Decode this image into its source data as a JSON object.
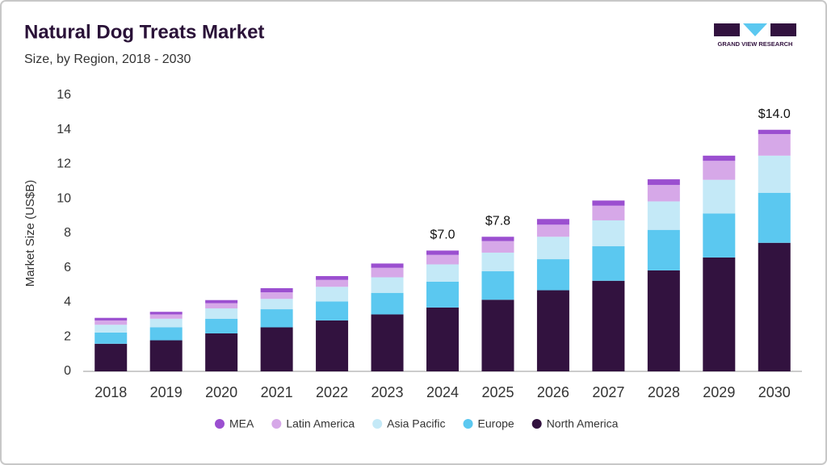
{
  "chart_data": {
    "type": "stacked_bar",
    "title": "Natural Dog Treats Market",
    "subtitle": "Size, by Region, 2018 - 2030",
    "logo_text": "GRAND VIEW RESEARCH",
    "y_label": "Market Size (US$B)",
    "categories": [
      "2018",
      "2019",
      "2020",
      "2021",
      "2022",
      "2023",
      "2024",
      "2025",
      "2026",
      "2027",
      "2028",
      "2029",
      "2030"
    ],
    "series": [
      {
        "name": "North America",
        "color": "#32123f",
        "values": [
          1.6,
          1.8,
          2.2,
          2.55,
          2.95,
          3.3,
          3.7,
          4.15,
          4.7,
          5.25,
          5.85,
          6.6,
          7.45
        ]
      },
      {
        "name": "Europe",
        "color": "#5bc8f0",
        "values": [
          0.65,
          0.75,
          0.85,
          1.05,
          1.1,
          1.25,
          1.5,
          1.65,
          1.8,
          2.0,
          2.35,
          2.55,
          2.9
        ]
      },
      {
        "name": "Asia Pacific",
        "color": "#c4e9f7",
        "values": [
          0.45,
          0.5,
          0.6,
          0.6,
          0.85,
          0.9,
          1.0,
          1.08,
          1.3,
          1.5,
          1.65,
          1.95,
          2.15
        ]
      },
      {
        "name": "Latin America",
        "color": "#d6a8e8",
        "values": [
          0.25,
          0.25,
          0.3,
          0.38,
          0.4,
          0.55,
          0.55,
          0.67,
          0.7,
          0.85,
          0.95,
          1.1,
          1.25
        ]
      },
      {
        "name": "MEA",
        "color": "#9b4fd0",
        "values": [
          0.15,
          0.15,
          0.18,
          0.24,
          0.22,
          0.25,
          0.25,
          0.25,
          0.33,
          0.3,
          0.33,
          0.3,
          0.25
        ]
      }
    ],
    "annotations": [
      {
        "x": "2024",
        "value": 7.0,
        "label": "$7.0"
      },
      {
        "x": "2025",
        "value": 7.8,
        "label": "$7.8"
      },
      {
        "x": "2030",
        "value": 14.0,
        "label": "$14.0"
      }
    ],
    "ylim": [
      0,
      16
    ],
    "yticks": [
      0,
      2,
      4,
      6,
      8,
      10,
      12,
      14,
      16
    ],
    "grid": false,
    "legend": "bottom"
  }
}
